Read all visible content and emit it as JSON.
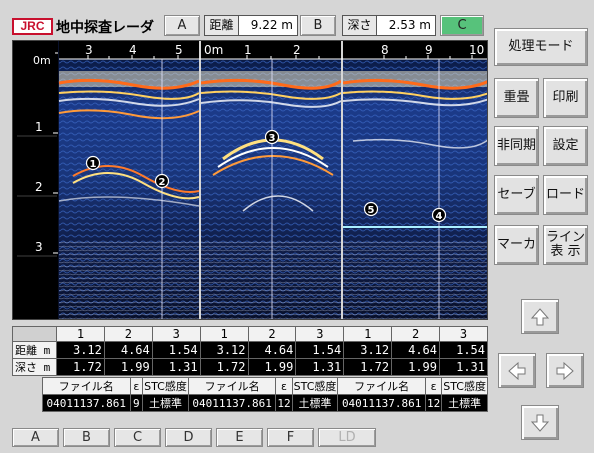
{
  "header": {
    "brand": "JRC",
    "title": "地中探査レーダ",
    "cursor_a": "A",
    "distance_label": "距離",
    "distance_value": "9.22 m",
    "cursor_b": "B",
    "depth_label": "深さ",
    "depth_value": "2.53 m",
    "cursor_c": "C"
  },
  "radar": {
    "depth_ticks": [
      "0m",
      "1",
      "2",
      "3"
    ],
    "panels": [
      {
        "start": "3",
        "ticks": [
          "4",
          "5"
        ]
      },
      {
        "start": "0m",
        "ticks": [
          "1",
          "2"
        ]
      },
      {
        "start": "8",
        "ticks": [
          "9",
          "10"
        ]
      }
    ],
    "markers": [
      "1",
      "2",
      "3",
      "4",
      "5"
    ]
  },
  "table": {
    "columns": [
      "1",
      "2",
      "3",
      "1",
      "2",
      "3",
      "1",
      "2",
      "3"
    ],
    "distance_label": "距離 m",
    "depth_label": "深さ m",
    "distance": [
      "3.12",
      "4.64",
      "1.54",
      "3.12",
      "4.64",
      "1.54",
      "3.12",
      "4.64",
      "1.54"
    ],
    "depth": [
      "1.72",
      "1.99",
      "1.31",
      "1.72",
      "1.99",
      "1.31",
      "1.72",
      "1.99",
      "1.31"
    ]
  },
  "files": {
    "file_label": "ファイル名",
    "eps_label": "ε",
    "stc_label": "STC感度",
    "entries": [
      {
        "name": "04011137.861",
        "eps": "9",
        "stc": "土標準"
      },
      {
        "name": "04011137.861",
        "eps": "12",
        "stc": "土標準"
      },
      {
        "name": "04011137.861",
        "eps": "12",
        "stc": "土標準"
      }
    ]
  },
  "file_buttons": [
    "A",
    "B",
    "C",
    "D",
    "E",
    "F",
    "LD"
  ],
  "right_panel": {
    "process_mode": "処理モード",
    "overlay": "重畳",
    "print": "印刷",
    "async": "非同期",
    "settings": "設定",
    "save": "セーブ",
    "load": "ロード",
    "marker": "マーカ",
    "line_display_1": "ライン",
    "line_display_2": "表 示"
  },
  "colors": {
    "background": "#d6d6d6",
    "active_green": "#57c27b",
    "brand_red": "#c8102e",
    "radar_bg": "#08102a"
  }
}
